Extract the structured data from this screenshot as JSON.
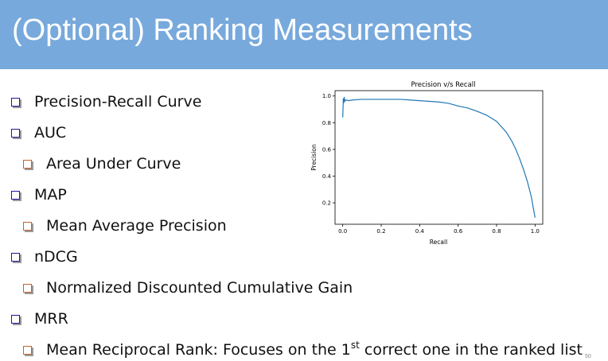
{
  "slide": {
    "title": "(Optional) Ranking Measurements",
    "page_number": "50",
    "colors": {
      "header": "#77a9dc",
      "bullet_l1": "#1a1a9a",
      "bullet_l2": "#c0652a",
      "curve": "#1f77b4"
    },
    "bullets": [
      {
        "text": "Precision-Recall Curve",
        "level": 1
      },
      {
        "text": "AUC",
        "level": 1
      },
      {
        "text": "Area Under Curve",
        "level": 2
      },
      {
        "text": "MAP",
        "level": 1
      },
      {
        "text": "Mean Average Precision",
        "level": 2
      },
      {
        "text": "nDCG",
        "level": 1
      },
      {
        "text": "Normalized Discounted Cumulative Gain",
        "level": 2
      },
      {
        "text": "MRR",
        "level": 1
      },
      {
        "text_before": "Mean Reciprocal Rank: Focuses on the 1",
        "superscript": "st",
        "text_after": " correct one in the ranked list",
        "level": 2
      }
    ]
  },
  "chart_data": {
    "type": "line",
    "title": "Precision v/s Recall",
    "xlabel": "Recall",
    "ylabel": "Precision",
    "xlim": [
      -0.04,
      1.04
    ],
    "ylim": [
      0.04,
      1.04
    ],
    "xticks": [
      "0.0",
      "0.2",
      "0.4",
      "0.6",
      "0.8",
      "1.0"
    ],
    "yticks": [
      "0.2",
      "0.4",
      "0.6",
      "0.8",
      "1.0"
    ],
    "grid": false,
    "series": [
      {
        "x": [
          0.0,
          0.003,
          0.006,
          0.008,
          0.01,
          0.012,
          0.015,
          0.02,
          0.03,
          0.05,
          0.1,
          0.2,
          0.3,
          0.4,
          0.5,
          0.55,
          0.6,
          0.65,
          0.7,
          0.75,
          0.8,
          0.85,
          0.88,
          0.9,
          0.92,
          0.94,
          0.96,
          0.98,
          1.0
        ],
        "y": [
          0.84,
          0.98,
          0.95,
          0.99,
          0.96,
          0.97,
          0.965,
          0.97,
          0.965,
          0.97,
          0.975,
          0.975,
          0.975,
          0.965,
          0.955,
          0.945,
          0.925,
          0.91,
          0.885,
          0.855,
          0.81,
          0.73,
          0.66,
          0.6,
          0.53,
          0.45,
          0.36,
          0.25,
          0.09
        ]
      }
    ]
  }
}
